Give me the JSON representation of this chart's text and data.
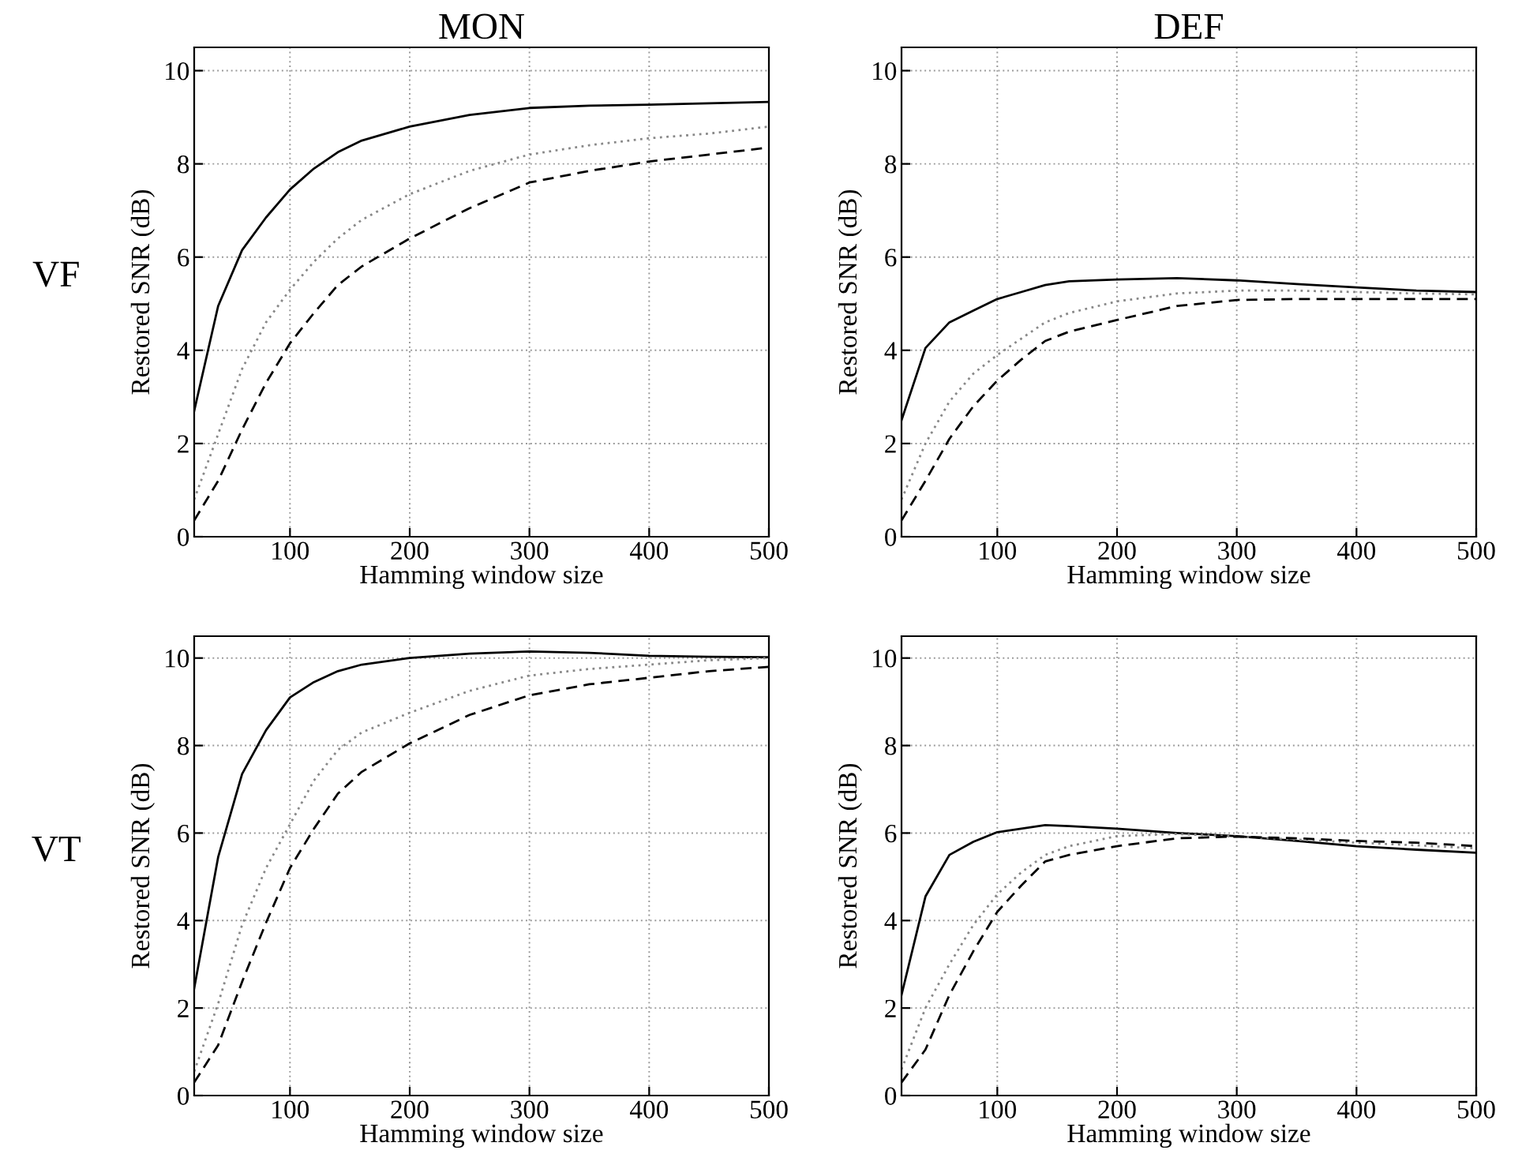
{
  "chart_data": [
    {
      "type": "line",
      "title": "MON",
      "annotations": [
        "VF"
      ],
      "xlabel": "Hamming window size",
      "ylabel": "Restored SNR (dB)",
      "xlim": [
        20,
        500
      ],
      "ylim": [
        0,
        10.5
      ],
      "xticks": [
        100,
        200,
        300,
        400,
        500
      ],
      "yticks": [
        0,
        2,
        4,
        6,
        8,
        10
      ],
      "grid": true,
      "x": [
        20,
        40,
        60,
        80,
        100,
        120,
        140,
        160,
        200,
        250,
        300,
        350,
        400,
        450,
        500
      ],
      "series": [
        {
          "color": "#000000",
          "line_style": "solid",
          "values": [
            2.7,
            4.95,
            6.15,
            6.85,
            7.45,
            7.9,
            8.25,
            8.5,
            8.8,
            9.05,
            9.2,
            9.25,
            9.27,
            9.3,
            9.33
          ]
        },
        {
          "color": "#888888",
          "line_style": "dotted",
          "values": [
            0.8,
            2.2,
            3.6,
            4.6,
            5.3,
            5.9,
            6.4,
            6.8,
            7.35,
            7.85,
            8.2,
            8.4,
            8.55,
            8.65,
            8.8
          ]
        },
        {
          "color": "#000000",
          "line_style": "dashed",
          "values": [
            0.35,
            1.2,
            2.3,
            3.3,
            4.15,
            4.8,
            5.4,
            5.8,
            6.4,
            7.05,
            7.6,
            7.85,
            8.05,
            8.2,
            8.35
          ]
        }
      ]
    },
    {
      "type": "line",
      "title": "DEF",
      "xlabel": "Hamming window size",
      "ylabel": "Restored SNR (dB)",
      "xlim": [
        20,
        500
      ],
      "ylim": [
        0,
        10.5
      ],
      "xticks": [
        100,
        200,
        300,
        400,
        500
      ],
      "yticks": [
        0,
        2,
        4,
        6,
        8,
        10
      ],
      "grid": true,
      "x": [
        20,
        40,
        60,
        80,
        100,
        120,
        140,
        160,
        200,
        250,
        300,
        350,
        400,
        450,
        500
      ],
      "series": [
        {
          "color": "#000000",
          "line_style": "solid",
          "values": [
            2.5,
            4.05,
            4.6,
            4.85,
            5.1,
            5.25,
            5.4,
            5.48,
            5.52,
            5.55,
            5.5,
            5.42,
            5.35,
            5.28,
            5.25
          ]
        },
        {
          "color": "#888888",
          "line_style": "dotted",
          "values": [
            0.8,
            2.0,
            2.9,
            3.5,
            3.9,
            4.25,
            4.6,
            4.8,
            5.05,
            5.22,
            5.28,
            5.28,
            5.25,
            5.22,
            5.2
          ]
        },
        {
          "color": "#000000",
          "line_style": "dashed",
          "values": [
            0.35,
            1.2,
            2.1,
            2.8,
            3.35,
            3.8,
            4.2,
            4.4,
            4.65,
            4.95,
            5.08,
            5.1,
            5.1,
            5.1,
            5.1
          ]
        }
      ]
    },
    {
      "type": "line",
      "annotations": [
        "VT"
      ],
      "xlabel": "Hamming window size",
      "ylabel": "Restored SNR (dB)",
      "xlim": [
        20,
        500
      ],
      "ylim": [
        0,
        10.5
      ],
      "xticks": [
        100,
        200,
        300,
        400,
        500
      ],
      "yticks": [
        0,
        2,
        4,
        6,
        8,
        10
      ],
      "grid": true,
      "x": [
        20,
        40,
        60,
        80,
        100,
        120,
        140,
        160,
        200,
        250,
        300,
        350,
        400,
        450,
        500
      ],
      "series": [
        {
          "color": "#000000",
          "line_style": "solid",
          "values": [
            2.45,
            5.45,
            7.35,
            8.35,
            9.1,
            9.45,
            9.7,
            9.85,
            10.0,
            10.1,
            10.15,
            10.12,
            10.05,
            10.03,
            10.02
          ]
        },
        {
          "color": "#888888",
          "line_style": "dotted",
          "values": [
            0.55,
            2.1,
            3.9,
            5.2,
            6.2,
            7.2,
            7.9,
            8.3,
            8.75,
            9.25,
            9.6,
            9.75,
            9.85,
            9.95,
            10.0
          ]
        },
        {
          "color": "#000000",
          "line_style": "dashed",
          "values": [
            0.3,
            1.15,
            2.6,
            3.95,
            5.2,
            6.1,
            6.9,
            7.4,
            8.05,
            8.7,
            9.15,
            9.4,
            9.55,
            9.7,
            9.8
          ]
        }
      ]
    },
    {
      "type": "line",
      "xlabel": "Hamming window size",
      "ylabel": "Restored SNR (dB)",
      "xlim": [
        20,
        500
      ],
      "ylim": [
        0,
        10.5
      ],
      "xticks": [
        100,
        200,
        300,
        400,
        500
      ],
      "yticks": [
        0,
        2,
        4,
        6,
        8,
        10
      ],
      "grid": true,
      "x": [
        20,
        40,
        60,
        80,
        100,
        120,
        140,
        160,
        200,
        250,
        300,
        350,
        400,
        450,
        500
      ],
      "series": [
        {
          "color": "#000000",
          "line_style": "solid",
          "values": [
            2.3,
            4.55,
            5.5,
            5.8,
            6.02,
            6.1,
            6.18,
            6.16,
            6.1,
            6.0,
            5.93,
            5.82,
            5.7,
            5.62,
            5.55
          ]
        },
        {
          "color": "#888888",
          "line_style": "dotted",
          "values": [
            0.6,
            2.0,
            3.0,
            3.9,
            4.6,
            5.1,
            5.5,
            5.7,
            5.93,
            5.98,
            5.92,
            5.85,
            5.78,
            5.72,
            5.65
          ]
        },
        {
          "color": "#000000",
          "line_style": "dashed",
          "values": [
            0.3,
            1.05,
            2.3,
            3.3,
            4.2,
            4.8,
            5.35,
            5.5,
            5.7,
            5.88,
            5.92,
            5.88,
            5.82,
            5.78,
            5.7
          ]
        }
      ]
    }
  ]
}
